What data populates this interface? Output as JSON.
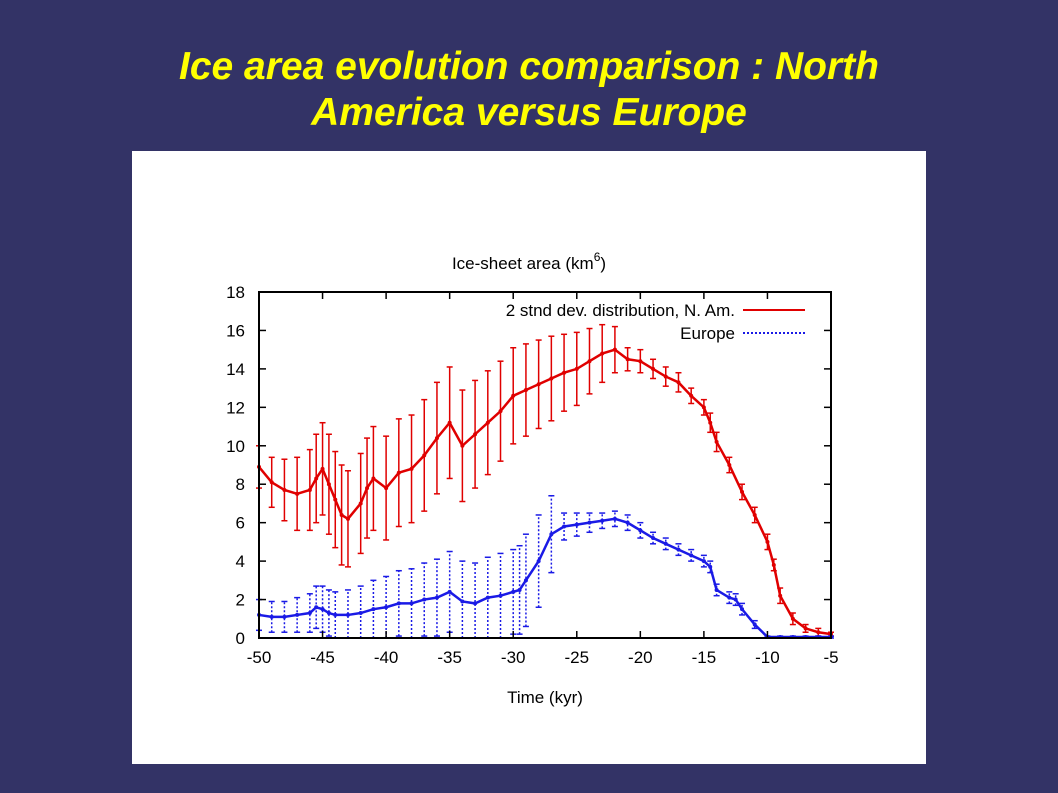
{
  "slide": {
    "title_line1": "Ice area evolution comparison : North",
    "title_line2": "America versus Europe"
  },
  "colors": {
    "background": "#333366",
    "title": "#ffff00",
    "north_america": "#e00000",
    "europe": "#1a1ae6"
  },
  "chart_data": {
    "type": "line",
    "title_main": "Ice-sheet area (km",
    "title_sup": "6",
    "title_close": ")",
    "xlabel": "Time (kyr)",
    "ylabel": "",
    "xlim": [
      -50,
      -5
    ],
    "ylim": [
      0,
      18
    ],
    "xticks": [
      "-50",
      "-45",
      "-40",
      "-35",
      "-30",
      "-25",
      "-20",
      "-15",
      "-10",
      "-5"
    ],
    "xtick_values": [
      -50,
      -45,
      -40,
      -35,
      -30,
      -25,
      -20,
      -15,
      -10,
      -5
    ],
    "yticks": [
      "0",
      "2",
      "4",
      "6",
      "8",
      "10",
      "12",
      "14",
      "16",
      "18"
    ],
    "ytick_values": [
      0,
      2,
      4,
      6,
      8,
      10,
      12,
      14,
      16,
      18
    ],
    "grid": false,
    "legend_position": "top-right",
    "series": [
      {
        "name": "2 stnd dev. distribution, N. Am.",
        "style": "solid",
        "x": [
          -50,
          -49,
          -48,
          -47,
          -46,
          -45.5,
          -45,
          -44.5,
          -44,
          -43.5,
          -43,
          -42,
          -41.5,
          -41,
          -40,
          -39,
          -38,
          -37,
          -36,
          -35,
          -34,
          -33,
          -32,
          -31,
          -30,
          -29,
          -28,
          -27,
          -26,
          -25,
          -24,
          -23,
          -22,
          -21,
          -20,
          -19,
          -18,
          -17,
          -16,
          -15,
          -14.5,
          -14,
          -13,
          -12,
          -11,
          -10,
          -9.5,
          -9,
          -8,
          -7,
          -6,
          -5
        ],
        "values": [
          8.9,
          8.1,
          7.7,
          7.5,
          7.7,
          8.3,
          8.8,
          8.0,
          7.2,
          6.4,
          6.2,
          7.0,
          7.8,
          8.3,
          7.8,
          8.6,
          8.8,
          9.5,
          10.4,
          11.2,
          10.0,
          10.6,
          11.2,
          11.8,
          12.6,
          12.9,
          13.2,
          13.5,
          13.8,
          14.0,
          14.4,
          14.8,
          15.0,
          14.5,
          14.4,
          14.0,
          13.6,
          13.3,
          12.6,
          12.0,
          11.2,
          10.2,
          9.0,
          7.6,
          6.4,
          5.0,
          3.8,
          2.2,
          1.0,
          0.5,
          0.3,
          0.2
        ],
        "errors": [
          1.1,
          1.3,
          1.6,
          1.9,
          2.1,
          2.3,
          2.4,
          2.6,
          2.5,
          2.6,
          2.5,
          2.6,
          2.6,
          2.7,
          2.7,
          2.8,
          2.8,
          2.9,
          2.9,
          2.9,
          2.9,
          2.8,
          2.7,
          2.6,
          2.5,
          2.4,
          2.3,
          2.2,
          2.0,
          1.9,
          1.7,
          1.5,
          1.2,
          0.6,
          0.6,
          0.5,
          0.5,
          0.5,
          0.4,
          0.4,
          0.5,
          0.5,
          0.4,
          0.4,
          0.4,
          0.4,
          0.3,
          0.4,
          0.3,
          0.2,
          0.2,
          0.1
        ]
      },
      {
        "name": "Europe",
        "style": "dotted",
        "x": [
          -50,
          -49,
          -48,
          -47,
          -46,
          -45.5,
          -45,
          -44.5,
          -44,
          -43,
          -42,
          -41,
          -40,
          -39,
          -38,
          -37,
          -36,
          -35,
          -34,
          -33,
          -32,
          -31,
          -30,
          -29.5,
          -29,
          -28,
          -27,
          -26,
          -25,
          -24,
          -23,
          -22,
          -21,
          -20,
          -19,
          -18,
          -17,
          -16,
          -15,
          -14.5,
          -14,
          -13,
          -12.5,
          -12,
          -11,
          -10,
          -9,
          -8,
          -7,
          -6,
          -5
        ],
        "values": [
          1.2,
          1.1,
          1.1,
          1.2,
          1.3,
          1.6,
          1.5,
          1.3,
          1.2,
          1.2,
          1.3,
          1.5,
          1.6,
          1.8,
          1.8,
          2.0,
          2.1,
          2.4,
          1.9,
          1.8,
          2.1,
          2.2,
          2.4,
          2.5,
          3.0,
          4.0,
          5.4,
          5.8,
          5.9,
          6.0,
          6.1,
          6.2,
          6.0,
          5.6,
          5.2,
          4.9,
          4.6,
          4.3,
          4.0,
          3.7,
          2.5,
          2.1,
          2.0,
          1.5,
          0.7,
          0.05,
          0.05,
          0.05,
          0.05,
          0.05,
          0.05
        ],
        "errors": [
          0.8,
          0.8,
          0.8,
          0.9,
          1.0,
          1.1,
          1.2,
          1.2,
          1.2,
          1.3,
          1.4,
          1.5,
          1.6,
          1.7,
          1.8,
          1.9,
          2.0,
          2.1,
          2.1,
          2.1,
          2.1,
          2.2,
          2.2,
          2.3,
          2.4,
          2.4,
          2.0,
          0.7,
          0.6,
          0.5,
          0.4,
          0.4,
          0.4,
          0.4,
          0.3,
          0.3,
          0.3,
          0.3,
          0.3,
          0.3,
          0.3,
          0.3,
          0.3,
          0.3,
          0.2,
          0.05,
          0.05,
          0.05,
          0.05,
          0.05,
          0.05
        ]
      }
    ]
  }
}
